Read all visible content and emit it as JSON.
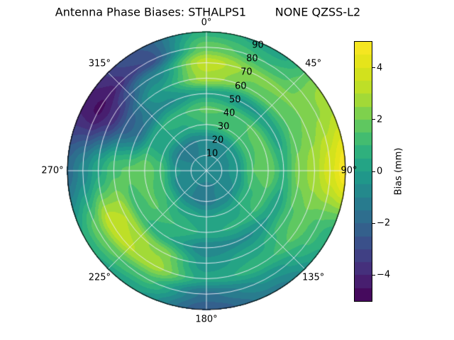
{
  "title": "Antenna Phase Biases: STHALPS1        NONE QZSS-L2",
  "chart_data": {
    "type": "heatmap",
    "projection": "polar",
    "title": "Antenna Phase Biases: STHALPS1        NONE QZSS-L2",
    "theta_ticks_deg": [
      0,
      45,
      90,
      135,
      180,
      225,
      270,
      315
    ],
    "theta_tick_labels": [
      "0°",
      "45°",
      "90°",
      "135°",
      "180°",
      "225°",
      "270°",
      "315°"
    ],
    "theta_direction": "clockwise",
    "theta_zero_location": "top",
    "r_ticks": [
      10,
      20,
      30,
      40,
      50,
      60,
      70,
      80,
      90
    ],
    "r_tick_labels": [
      "10",
      "20",
      "30",
      "40",
      "50",
      "60",
      "70",
      "80",
      "90"
    ],
    "r_label_angle_deg": 22.5,
    "rmax": 90,
    "grid_on": true,
    "colorbar": {
      "label": "Bias (mm)",
      "tick_values": [
        4,
        2,
        0,
        -2,
        -4
      ],
      "tick_labels": [
        "4",
        "2",
        "0",
        "−2",
        "−4"
      ],
      "vmin": -5,
      "vmax": 5,
      "level_step": 0.5,
      "position": "right"
    },
    "colormap": {
      "name": "viridis",
      "stops": [
        {
          "pos": 0.0,
          "hex": "#440154"
        },
        {
          "pos": 0.1,
          "hex": "#482878"
        },
        {
          "pos": 0.2,
          "hex": "#3e4989"
        },
        {
          "pos": 0.3,
          "hex": "#31688e"
        },
        {
          "pos": 0.4,
          "hex": "#26828e"
        },
        {
          "pos": 0.5,
          "hex": "#1f9e89"
        },
        {
          "pos": 0.6,
          "hex": "#35b779"
        },
        {
          "pos": 0.7,
          "hex": "#6dcd59"
        },
        {
          "pos": 0.8,
          "hex": "#b4de2c"
        },
        {
          "pos": 0.9,
          "hex": "#dde318"
        },
        {
          "pos": 1.0,
          "hex": "#fde725"
        }
      ]
    },
    "grid": {
      "azimuth_deg": [
        0,
        30,
        60,
        90,
        120,
        150,
        180,
        210,
        240,
        270,
        300,
        330
      ],
      "zenith_deg": [
        0,
        10,
        20,
        30,
        40,
        50,
        60,
        70,
        80,
        90
      ],
      "bias_mm": [
        [
          -0.5,
          -0.5,
          -0.5,
          -0.5,
          -0.5,
          -0.5,
          -0.5,
          -0.5,
          -0.5,
          -0.5,
          -0.5,
          -0.5
        ],
        [
          -0.9,
          -0.9,
          -0.8,
          -0.7,
          -0.8,
          -1.0,
          -1.1,
          -1.0,
          -0.9,
          -0.8,
          -1.0,
          -1.0
        ],
        [
          -0.8,
          -0.6,
          -0.3,
          -0.2,
          -0.5,
          -0.9,
          -1.2,
          -1.0,
          -0.7,
          -0.4,
          -1.1,
          -1.1
        ],
        [
          1.0,
          1.2,
          1.4,
          1.5,
          0.9,
          0.2,
          0.0,
          0.4,
          1.0,
          1.3,
          0.2,
          0.4
        ],
        [
          1.6,
          1.4,
          1.7,
          1.9,
          1.2,
          0.6,
          0.4,
          1.0,
          1.6,
          1.9,
          0.3,
          0.8
        ],
        [
          0.3,
          -0.2,
          0.2,
          0.8,
          0.1,
          -0.6,
          -0.9,
          0.5,
          1.2,
          1.6,
          -1.6,
          -0.6
        ],
        [
          2.8,
          1.8,
          1.5,
          2.2,
          1.4,
          0.3,
          -0.3,
          2.4,
          3.0,
          1.4,
          -2.4,
          0.0
        ],
        [
          3.3,
          2.2,
          2.0,
          2.8,
          1.8,
          0.8,
          0.2,
          2.8,
          3.4,
          0.4,
          -3.8,
          -1.0
        ],
        [
          1.8,
          1.0,
          2.4,
          3.8,
          1.2,
          -0.4,
          -1.6,
          1.2,
          1.8,
          -0.8,
          -4.6,
          -3.0
        ],
        [
          0.8,
          0.2,
          2.8,
          4.9,
          0.6,
          -1.2,
          -2.4,
          0.0,
          0.6,
          -1.8,
          -4.2,
          -2.5
        ]
      ]
    }
  }
}
